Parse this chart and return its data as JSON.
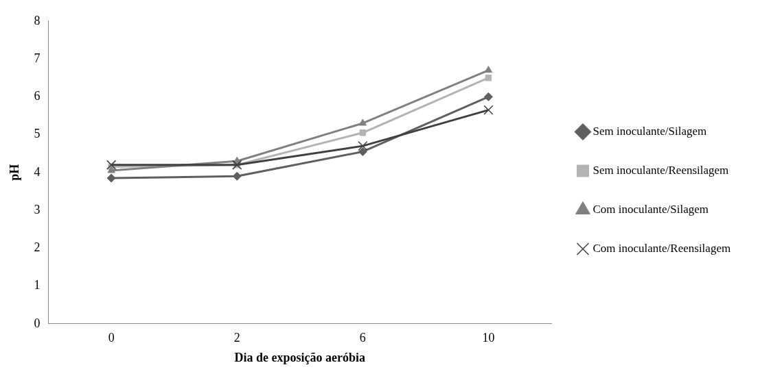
{
  "chart_data": {
    "type": "line",
    "xlabel": "Dia de exposição aeróbia",
    "ylabel": "pH",
    "categories": [
      "0",
      "2",
      "6",
      "10"
    ],
    "ylim": [
      0,
      8
    ],
    "yticks": [
      0,
      1,
      2,
      3,
      4,
      5,
      6,
      7,
      8
    ],
    "grid": false,
    "legend": "right",
    "line_style": "solid",
    "series": [
      {
        "name": "Sem inoculante/Silagem",
        "color": "#5f5f5f",
        "marker": "diamond",
        "values": [
          3.85,
          3.9,
          4.55,
          6.0
        ]
      },
      {
        "name": "Sem inoculante/Reensilagem",
        "color": "#b3b3b3",
        "marker": "square",
        "values": [
          4.15,
          4.2,
          5.05,
          6.5
        ]
      },
      {
        "name": "Com inoculante/Silagem",
        "color": "#808080",
        "marker": "triangle",
        "values": [
          4.05,
          4.3,
          5.3,
          6.7
        ]
      },
      {
        "name": "Com inoculante/Reensilagem",
        "color": "#404040",
        "marker": "cross",
        "values": [
          4.2,
          4.2,
          4.7,
          5.65
        ]
      }
    ]
  }
}
